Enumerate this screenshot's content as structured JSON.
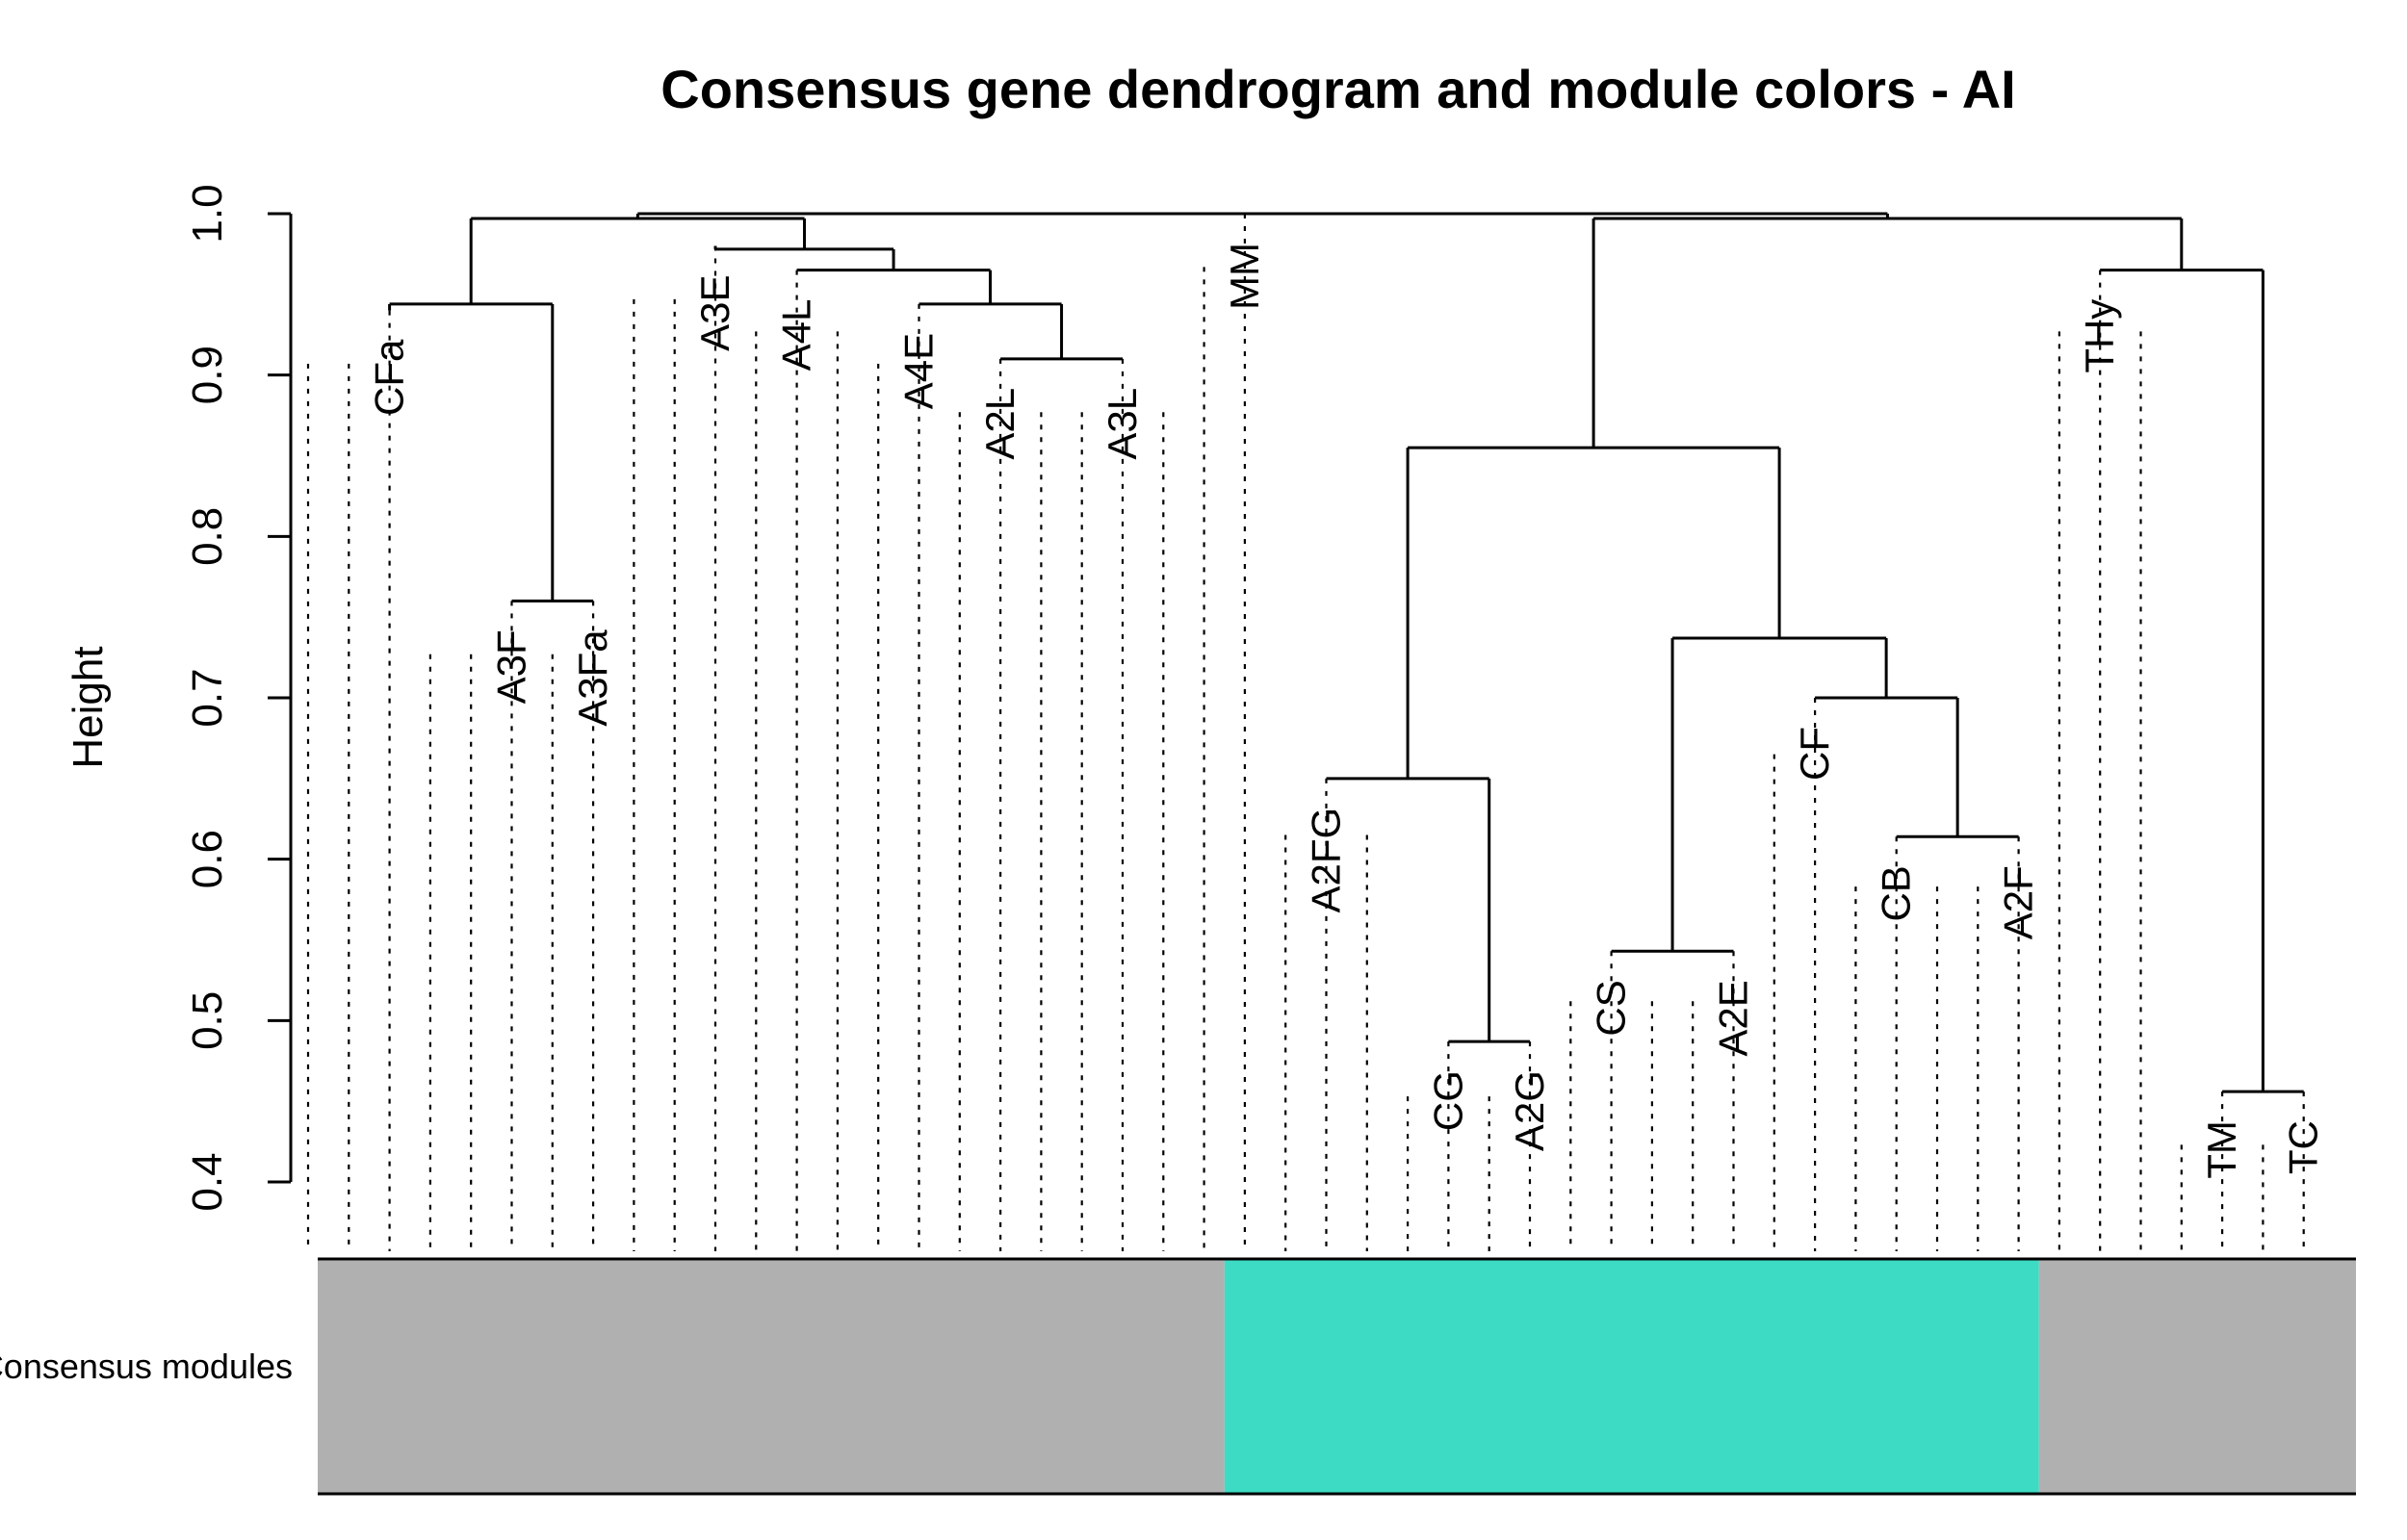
{
  "chart_data": {
    "type": "dendrogram",
    "title": "Consensus gene dendrogram and module colors - AI",
    "ylabel": "Height",
    "ylim": [
      0.4,
      1.0
    ],
    "yticks": [
      0.4,
      0.5,
      0.6,
      0.7,
      0.8,
      0.9,
      1.0
    ],
    "ytick_labels": [
      "0.4",
      "0.5",
      "0.6",
      "0.7",
      "0.8",
      "0.9",
      "1.0"
    ],
    "leaf_count": 50,
    "labeled_leaves": [
      {
        "label": "CFa",
        "leaf": 2,
        "height": 0.94
      },
      {
        "label": "A3F",
        "leaf": 5,
        "height": 0.76
      },
      {
        "label": "A3Fa",
        "leaf": 7,
        "height": 0.76
      },
      {
        "label": "A3E",
        "leaf": 10,
        "height": 0.98
      },
      {
        "label": "A4L",
        "leaf": 12,
        "height": 0.965
      },
      {
        "label": "A4E",
        "leaf": 15,
        "height": 0.944
      },
      {
        "label": "A2L",
        "leaf": 17,
        "height": 0.91
      },
      {
        "label": "A3L",
        "leaf": 20,
        "height": 0.91
      },
      {
        "label": "MM",
        "leaf": 23,
        "height": 1.0
      },
      {
        "label": "A2FG",
        "leaf": 25,
        "height": 0.65
      },
      {
        "label": "CG",
        "leaf": 28,
        "height": 0.487
      },
      {
        "label": "A2G",
        "leaf": 30,
        "height": 0.487
      },
      {
        "label": "CS",
        "leaf": 32,
        "height": 0.543
      },
      {
        "label": "A2E",
        "leaf": 35,
        "height": 0.543
      },
      {
        "label": "CF",
        "leaf": 37,
        "height": 0.7
      },
      {
        "label": "CB",
        "leaf": 39,
        "height": 0.614
      },
      {
        "label": "A2F",
        "leaf": 42,
        "height": 0.614
      },
      {
        "label": "THy",
        "leaf": 44,
        "height": 0.965
      },
      {
        "label": "TM",
        "leaf": 47,
        "height": 0.456
      },
      {
        "label": "TC",
        "leaf": 49,
        "height": 0.456
      }
    ],
    "unlabeled_leaf_heights": [
      {
        "leaf": 0,
        "height": 0.907
      },
      {
        "leaf": 1,
        "height": 0.907
      },
      {
        "leaf": 3,
        "height": 0.727
      },
      {
        "leaf": 4,
        "height": 0.727
      },
      {
        "leaf": 6,
        "height": 0.727
      },
      {
        "leaf": 8,
        "height": 0.947
      },
      {
        "leaf": 9,
        "height": 0.947
      },
      {
        "leaf": 11,
        "height": 0.927
      },
      {
        "leaf": 13,
        "height": 0.927
      },
      {
        "leaf": 14,
        "height": 0.907
      },
      {
        "leaf": 16,
        "height": 0.877
      },
      {
        "leaf": 18,
        "height": 0.877
      },
      {
        "leaf": 19,
        "height": 0.877
      },
      {
        "leaf": 21,
        "height": 0.877
      },
      {
        "leaf": 22,
        "height": 0.967
      },
      {
        "leaf": 24,
        "height": 0.615
      },
      {
        "leaf": 26,
        "height": 0.615
      },
      {
        "leaf": 27,
        "height": 0.453
      },
      {
        "leaf": 29,
        "height": 0.453
      },
      {
        "leaf": 31,
        "height": 0.512
      },
      {
        "leaf": 33,
        "height": 0.512
      },
      {
        "leaf": 34,
        "height": 0.512
      },
      {
        "leaf": 36,
        "height": 0.665
      },
      {
        "leaf": 38,
        "height": 0.583
      },
      {
        "leaf": 40,
        "height": 0.583
      },
      {
        "leaf": 41,
        "height": 0.583
      },
      {
        "leaf": 43,
        "height": 0.927
      },
      {
        "leaf": 45,
        "height": 0.927
      },
      {
        "leaf": 46,
        "height": 0.423
      },
      {
        "leaf": 48,
        "height": 0.423
      }
    ],
    "merges": [
      {
        "left": "CFa",
        "right": "A3F-A3Fa",
        "height": 0.944
      },
      {
        "left": "A3F",
        "right": "A3Fa",
        "height": 0.76
      },
      {
        "left": "A3E",
        "right": "A4L-group",
        "height": 0.978
      },
      {
        "left": "A4L",
        "right": "A4E-group",
        "height": 0.965
      },
      {
        "left": "A4E",
        "right": "A2L-A3L",
        "height": 0.944
      },
      {
        "left": "A2L",
        "right": "A3L",
        "height": 0.91
      },
      {
        "left": "CFa-group",
        "right": "A3E-group",
        "height": 1.0
      },
      {
        "left": "A2FG",
        "right": "CG-A2G",
        "height": 0.65
      },
      {
        "left": "CG",
        "right": "A2G",
        "height": 0.487
      },
      {
        "left": "CS",
        "right": "A2E",
        "height": 0.543
      },
      {
        "left": "CB",
        "right": "A2F",
        "height": 0.614
      },
      {
        "left": "CF",
        "right": "CB-A2F",
        "height": 0.7
      },
      {
        "left": "CS-A2E",
        "right": "CF-group",
        "height": 0.737
      },
      {
        "left": "A2FG-group",
        "right": "CS-group",
        "height": 0.855
      },
      {
        "left": "THy",
        "right": "TM-TC",
        "height": 0.965
      },
      {
        "left": "TM",
        "right": "TC",
        "height": 0.456
      },
      {
        "left": "turquoise-group",
        "right": "THy-group",
        "height": 0.997
      },
      {
        "left": "left-group",
        "right": "right-group",
        "height": 1.0
      }
    ],
    "module_band": {
      "label": "Consensus modules",
      "segments": [
        {
          "color": "#b0b0b0",
          "from_leaf": 0,
          "to_leaf": 22
        },
        {
          "color": "#3ddbc4",
          "from_leaf": 23,
          "to_leaf": 42
        },
        {
          "color": "#b0b0b0",
          "from_leaf": 43,
          "to_leaf": 49
        }
      ]
    },
    "grid": false,
    "legend": "none"
  }
}
